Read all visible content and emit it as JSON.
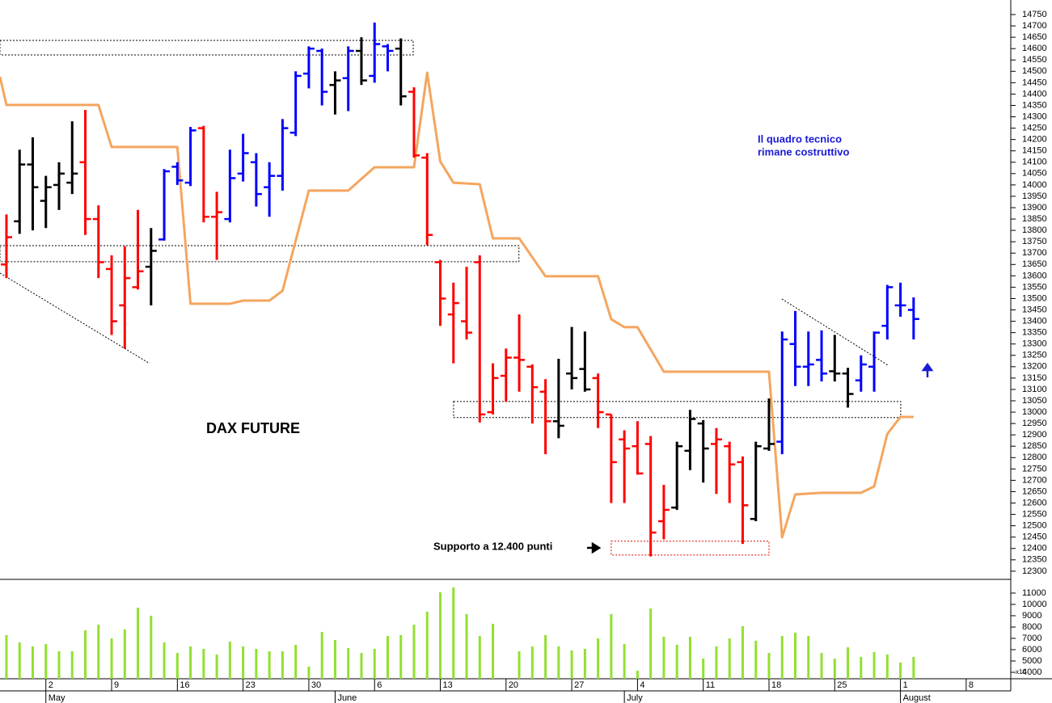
{
  "chart_data": [
    {
      "type": "ohlc",
      "title": "DAX FUTURE",
      "annotations": [
        "Il quadro tecnico",
        "rimane costruttivo",
        "Supporto a 12.400 punti"
      ],
      "xlim": [
        -0.49,
        76.39
      ],
      "ylim": [
        12264,
        14814
      ],
      "yticks": [
        12300,
        12350,
        12400,
        12450,
        12500,
        12550,
        12600,
        12650,
        12700,
        12750,
        12800,
        12850,
        12900,
        12950,
        13000,
        13050,
        13100,
        13150,
        13200,
        13250,
        13300,
        13350,
        13400,
        13450,
        13500,
        13550,
        13600,
        13650,
        13700,
        13750,
        13800,
        13850,
        13900,
        13950,
        14000,
        14050,
        14100,
        14150,
        14200,
        14250,
        14300,
        14350,
        14400,
        14450,
        14500,
        14550,
        14600,
        14650,
        14700,
        14750
      ],
      "open": [
        13650,
        13840,
        14090,
        13930,
        14000,
        14010,
        14100,
        13850,
        13630,
        13470,
        13550,
        13640,
        13760,
        14080,
        14010,
        14250,
        13860,
        13850,
        14050,
        14100,
        13990,
        14040,
        14230,
        14490,
        14590,
        14440,
        14470,
        14590,
        14480,
        14610,
        14600,
        14410,
        14120,
        13660,
        13430,
        13400,
        13660,
        13000,
        13160,
        13240,
        13200,
        13090,
        12960,
        13170,
        13190,
        13150,
        12990,
        12880,
        12850,
        12860,
        12520,
        12580,
        12830,
        12950,
        12860,
        12850,
        12780,
        12530,
        12840,
        12870,
        13300,
        13200,
        13230,
        13180,
        13170,
        13140,
        13200,
        13380,
        13470,
        13450
      ],
      "high": [
        13870,
        14155,
        14210,
        14040,
        14100,
        14280,
        14330,
        13910,
        13690,
        13730,
        13890,
        13810,
        14070,
        14100,
        14255,
        14260,
        13970,
        14155,
        14225,
        14140,
        14100,
        14290,
        14500,
        14610,
        14600,
        14500,
        14610,
        14650,
        14715,
        14620,
        14645,
        14430,
        14140,
        13670,
        13570,
        13640,
        13690,
        13215,
        13280,
        13430,
        13210,
        13145,
        13235,
        13375,
        13355,
        13170,
        12990,
        12920,
        12960,
        12895,
        12680,
        12870,
        13010,
        12965,
        12930,
        12870,
        12805,
        12870,
        13060,
        13355,
        13445,
        13355,
        13360,
        13340,
        13195,
        13250,
        13355,
        13560,
        13570,
        13505
      ],
      "low": [
        13590,
        13785,
        13800,
        13810,
        13890,
        13960,
        13780,
        13590,
        13340,
        13280,
        13540,
        13470,
        13755,
        14000,
        13995,
        13835,
        13670,
        13835,
        14015,
        13905,
        13860,
        13975,
        14215,
        14425,
        14350,
        14310,
        14325,
        14440,
        14450,
        14500,
        14350,
        14120,
        13735,
        13380,
        13215,
        13320,
        12955,
        12990,
        13045,
        13090,
        12950,
        12815,
        12885,
        13100,
        13090,
        12930,
        12600,
        12600,
        12725,
        12365,
        12440,
        12570,
        12745,
        12690,
        12640,
        12600,
        12420,
        12520,
        12830,
        12815,
        13115,
        13115,
        13135,
        13135,
        13020,
        13090,
        13090,
        13320,
        13420,
        13320
      ],
      "close": [
        13770,
        14090,
        13990,
        13990,
        14050,
        14050,
        13850,
        13660,
        13400,
        13590,
        13620,
        13710,
        14060,
        14020,
        14240,
        13860,
        13880,
        14030,
        14140,
        13960,
        14040,
        14250,
        14480,
        14600,
        14410,
        14460,
        14590,
        14460,
        14620,
        14590,
        14390,
        14130,
        13780,
        13500,
        13480,
        13350,
        12990,
        13150,
        13240,
        13230,
        13110,
        12960,
        12940,
        13150,
        13100,
        13000,
        12780,
        12840,
        12730,
        12470,
        12570,
        12850,
        12970,
        12840,
        12880,
        12770,
        12590,
        12850,
        12860,
        13320,
        13200,
        13210,
        13170,
        13170,
        13080,
        13210,
        13350,
        13550,
        13470,
        13410
      ],
      "colors": [
        "red",
        "black",
        "black",
        "black",
        "black",
        "black",
        "red",
        "red",
        "red",
        "red",
        "red",
        "black",
        "blue",
        "blue",
        "blue",
        "red",
        "red",
        "blue",
        "blue",
        "blue",
        "blue",
        "blue",
        "blue",
        "blue",
        "blue",
        "black",
        "blue",
        "black",
        "blue",
        "blue",
        "black",
        "red",
        "red",
        "red",
        "red",
        "red",
        "red",
        "red",
        "red",
        "red",
        "red",
        "red",
        "black",
        "black",
        "black",
        "red",
        "red",
        "red",
        "red",
        "red",
        "red",
        "black",
        "black",
        "black",
        "red",
        "red",
        "red",
        "black",
        "black",
        "blue",
        "blue",
        "blue",
        "blue",
        "black",
        "black",
        "blue",
        "blue",
        "blue",
        "blue",
        "blue"
      ],
      "overlay": {
        "color": "#f5a55f",
        "x": [
          -0.49,
          0,
          7,
          8,
          13,
          14,
          17,
          18,
          20,
          21,
          23,
          26,
          28,
          31,
          32,
          33,
          34,
          36,
          37,
          39,
          41,
          45,
          46,
          47,
          48,
          50,
          58,
          59,
          60,
          62,
          65,
          66,
          67,
          68,
          69
        ],
        "values": [
          14476,
          14352,
          14352,
          14167,
          14167,
          13477,
          13477,
          13491,
          13491,
          13534,
          13975,
          13975,
          14078,
          14078,
          14494,
          14103,
          14010,
          14003,
          13765,
          13765,
          13598,
          13598,
          13409,
          13374,
          13374,
          13178,
          13178,
          12449,
          12638,
          12645,
          12645,
          12673,
          12904,
          12979,
          12979
        ]
      },
      "trendlines": [
        {
          "x": [
            -0.49,
            10.89
          ],
          "values": [
            13612,
            13214
          ]
        },
        {
          "x": [
            58.98,
            67.04
          ],
          "values": [
            13498,
            13207
          ]
        }
      ],
      "zones": [
        {
          "xlim": [
            -0.49,
            30.94
          ],
          "ylim": [
            14572,
            14636
          ],
          "color": "#000000"
        },
        {
          "xlim": [
            -0.49,
            38.98
          ],
          "ylim": [
            13662,
            13733
          ],
          "color": "#000000"
        },
        {
          "xlim": [
            34.01,
            68.02
          ],
          "ylim": [
            12976,
            13047
          ],
          "color": "#000000"
        },
        {
          "xlim": [
            46,
            58
          ],
          "ylim": [
            12371,
            12432
          ],
          "color": "#e00000"
        }
      ]
    },
    {
      "type": "bar",
      "color": "#92e030",
      "axis_note": "x10",
      "xlim": [
        -0.49,
        76.39
      ],
      "ylim": [
        3430,
        12140
      ],
      "yticks": [
        4000,
        5000,
        6000,
        7000,
        8000,
        9000,
        10000,
        11000
      ],
      "values": [
        7290,
        6640,
        6290,
        6500,
        5860,
        5860,
        7710,
        8210,
        7000,
        7790,
        9710,
        9000,
        6640,
        5710,
        6290,
        6070,
        5570,
        6710,
        6290,
        6070,
        5860,
        5860,
        6430,
        4500,
        7570,
        6860,
        6140,
        5710,
        6070,
        7210,
        7290,
        8210,
        9360,
        11070,
        11500,
        9140,
        7210,
        8290,
        null,
        5860,
        6290,
        7290,
        6290,
        5930,
        6070,
        7000,
        9140,
        6500,
        4140,
        9640,
        7140,
        6430,
        7140,
        5210,
        6290,
        7000,
        8070,
        6790,
        5710,
        7210,
        7500,
        7210,
        5710,
        5210,
        6210,
        5360,
        5790,
        5570,
        4860,
        5360
      ],
      "xticks": [
        {
          "value": 3,
          "label": "2"
        },
        {
          "value": 8,
          "label": "9"
        },
        {
          "value": 13,
          "label": "16"
        },
        {
          "value": 18,
          "label": "23"
        },
        {
          "value": 23,
          "label": "30"
        },
        {
          "value": 28,
          "label": "6"
        },
        {
          "value": 33,
          "label": "13"
        },
        {
          "value": 38,
          "label": "20"
        },
        {
          "value": 43,
          "label": "27"
        },
        {
          "value": 48,
          "label": "4"
        },
        {
          "value": 53,
          "label": "11"
        },
        {
          "value": 58,
          "label": "18"
        },
        {
          "value": 63,
          "label": "25"
        },
        {
          "value": 68,
          "label": "1"
        },
        {
          "value": 73,
          "label": "8"
        }
      ],
      "month_ticks": [
        {
          "value": 3,
          "label": "May"
        },
        {
          "value": 25,
          "label": "June"
        },
        {
          "value": 47,
          "label": "July"
        },
        {
          "value": 68,
          "label": "August"
        }
      ]
    }
  ]
}
